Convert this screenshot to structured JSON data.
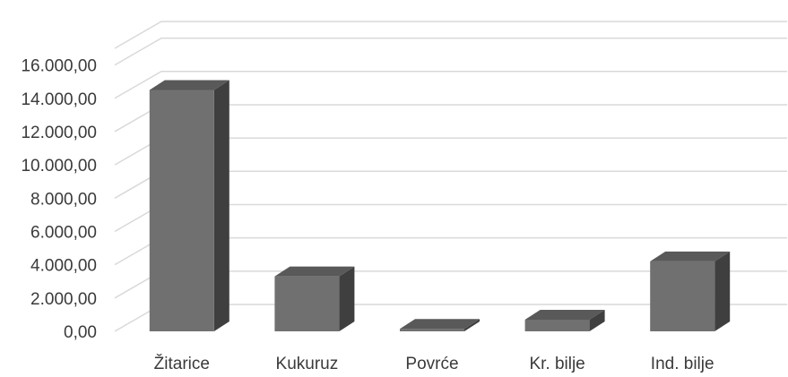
{
  "chart_data": {
    "type": "bar",
    "style": "3d-column",
    "categories": [
      "Žitarice",
      "Kukuruz",
      "Povrće",
      "Kr. bilje",
      "Ind. bilje"
    ],
    "values": [
      14500,
      3300,
      150,
      700,
      4200
    ],
    "ylim": [
      0,
      17000
    ],
    "yticks": [
      0,
      2000,
      4000,
      6000,
      8000,
      10000,
      12000,
      14000,
      16000
    ],
    "ytick_labels": [
      "0,00",
      "2.000,00",
      "4.000,00",
      "6.000,00",
      "8.000,00",
      "10.000,00",
      "12.000,00",
      "14.000,00",
      "16.000,00"
    ],
    "grid": true,
    "legend": "none",
    "colors": {
      "front": "#707070",
      "side": "#3f3f3f",
      "top": "#595959",
      "grid": "#d9d9d9"
    }
  }
}
